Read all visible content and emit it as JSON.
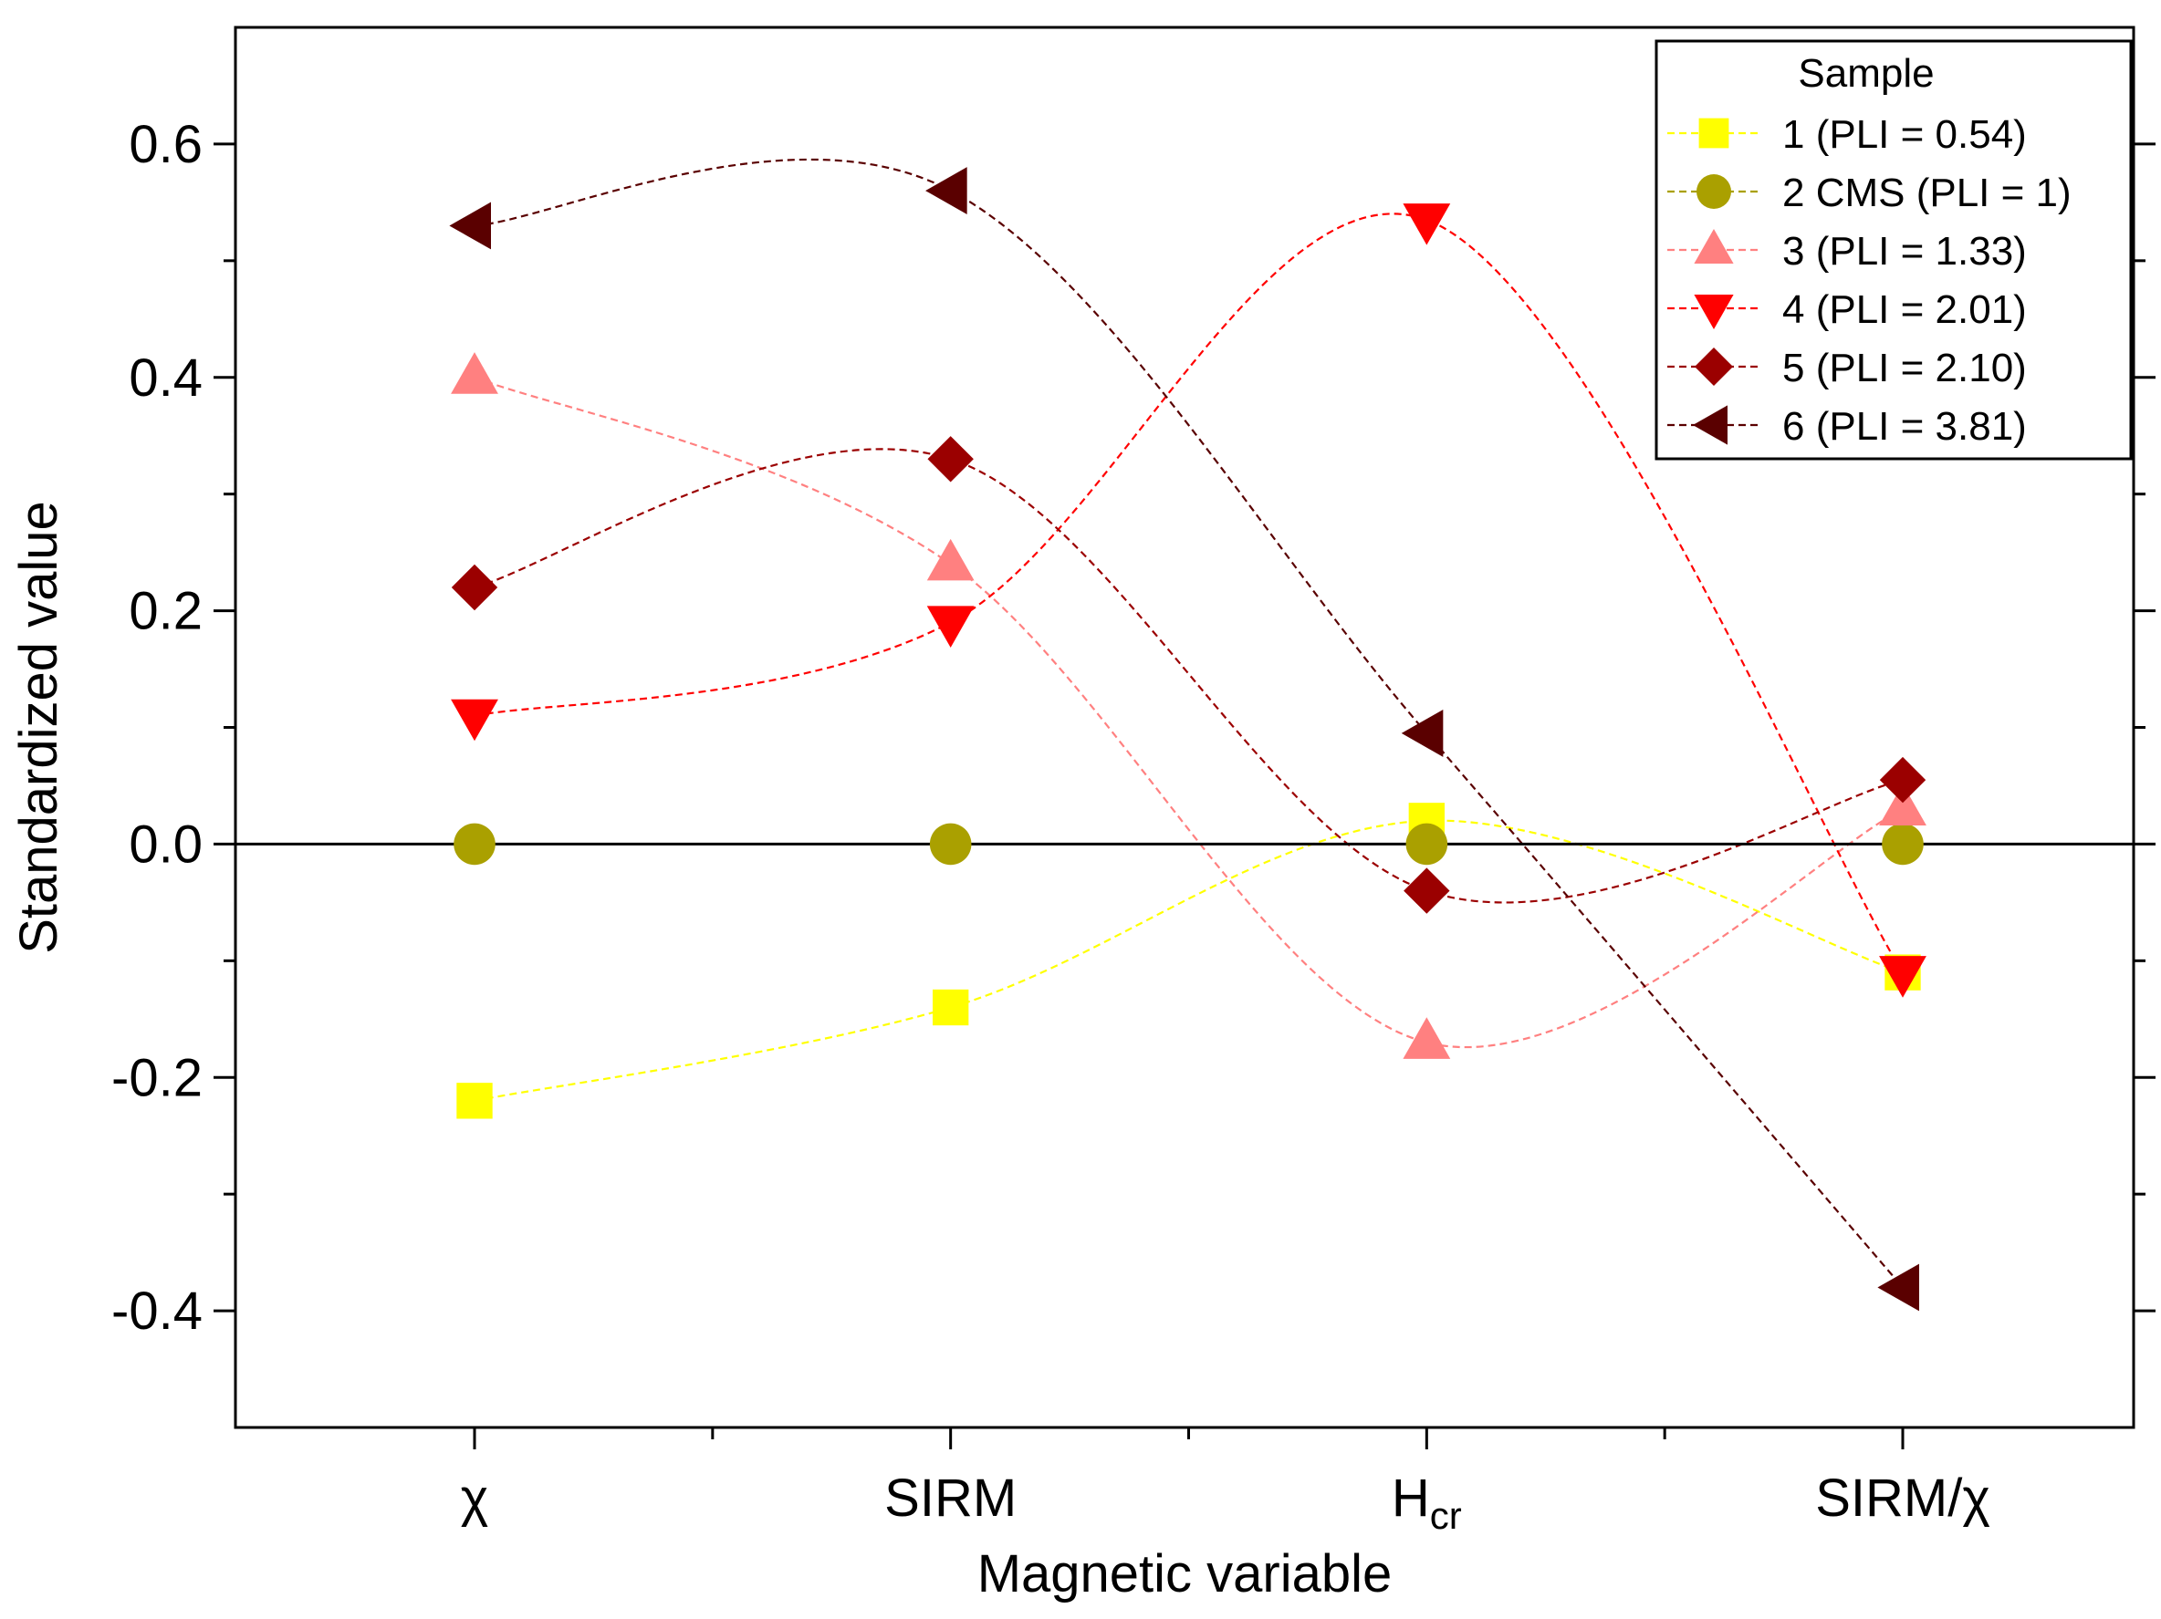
{
  "chart_data": {
    "type": "line",
    "xlabel": "Magnetic variable",
    "ylabel": "Standardized value",
    "categories": [
      "χ",
      "SIRM",
      "H",
      "SIRM/χ"
    ],
    "category_subscripts": [
      "",
      "",
      "cr",
      ""
    ],
    "ylim": [
      -0.5,
      0.7
    ],
    "yticks": [
      {
        "value": -0.4,
        "label": "-0.4"
      },
      {
        "value": -0.2,
        "label": "-0.2"
      },
      {
        "value": 0.0,
        "label": "0.0"
      },
      {
        "value": 0.2,
        "label": "0.2"
      },
      {
        "value": 0.4,
        "label": "0.4"
      },
      {
        "value": 0.6,
        "label": "0.6"
      }
    ],
    "yminor_ticks": [
      -0.3,
      -0.1,
      0.1,
      0.3,
      0.5
    ],
    "reference_line": 0,
    "grid": false,
    "curve": "smooth spline, dashed",
    "legend": {
      "title": "Sample",
      "placement": "top-right"
    },
    "series": [
      {
        "name": "1 (PLI = 0.54)",
        "marker": "square",
        "color": "#FFFF00",
        "values": [
          -0.22,
          -0.14,
          0.02,
          -0.11
        ]
      },
      {
        "name": "2 CMS (PLI = 1)",
        "marker": "circle",
        "color": "#AAA000",
        "values": [
          0.0,
          0.0,
          0.0,
          0.0
        ]
      },
      {
        "name": "3 (PLI = 1.33)",
        "marker": "triangle-up",
        "color": "#FF8080",
        "values": [
          0.4,
          0.24,
          -0.17,
          0.03
        ]
      },
      {
        "name": "4 (PLI = 2.01)",
        "marker": "triangle-down",
        "color": "#FF0000",
        "values": [
          0.11,
          0.19,
          0.535,
          -0.11
        ]
      },
      {
        "name": "5 (PLI = 2.10)",
        "marker": "diamond",
        "color": "#9B0000",
        "values": [
          0.22,
          0.33,
          -0.04,
          0.055
        ]
      },
      {
        "name": "6 (PLI = 3.81)",
        "marker": "triangle-left",
        "color": "#5A0000",
        "values": [
          0.53,
          0.56,
          0.095,
          -0.38
        ]
      }
    ]
  }
}
